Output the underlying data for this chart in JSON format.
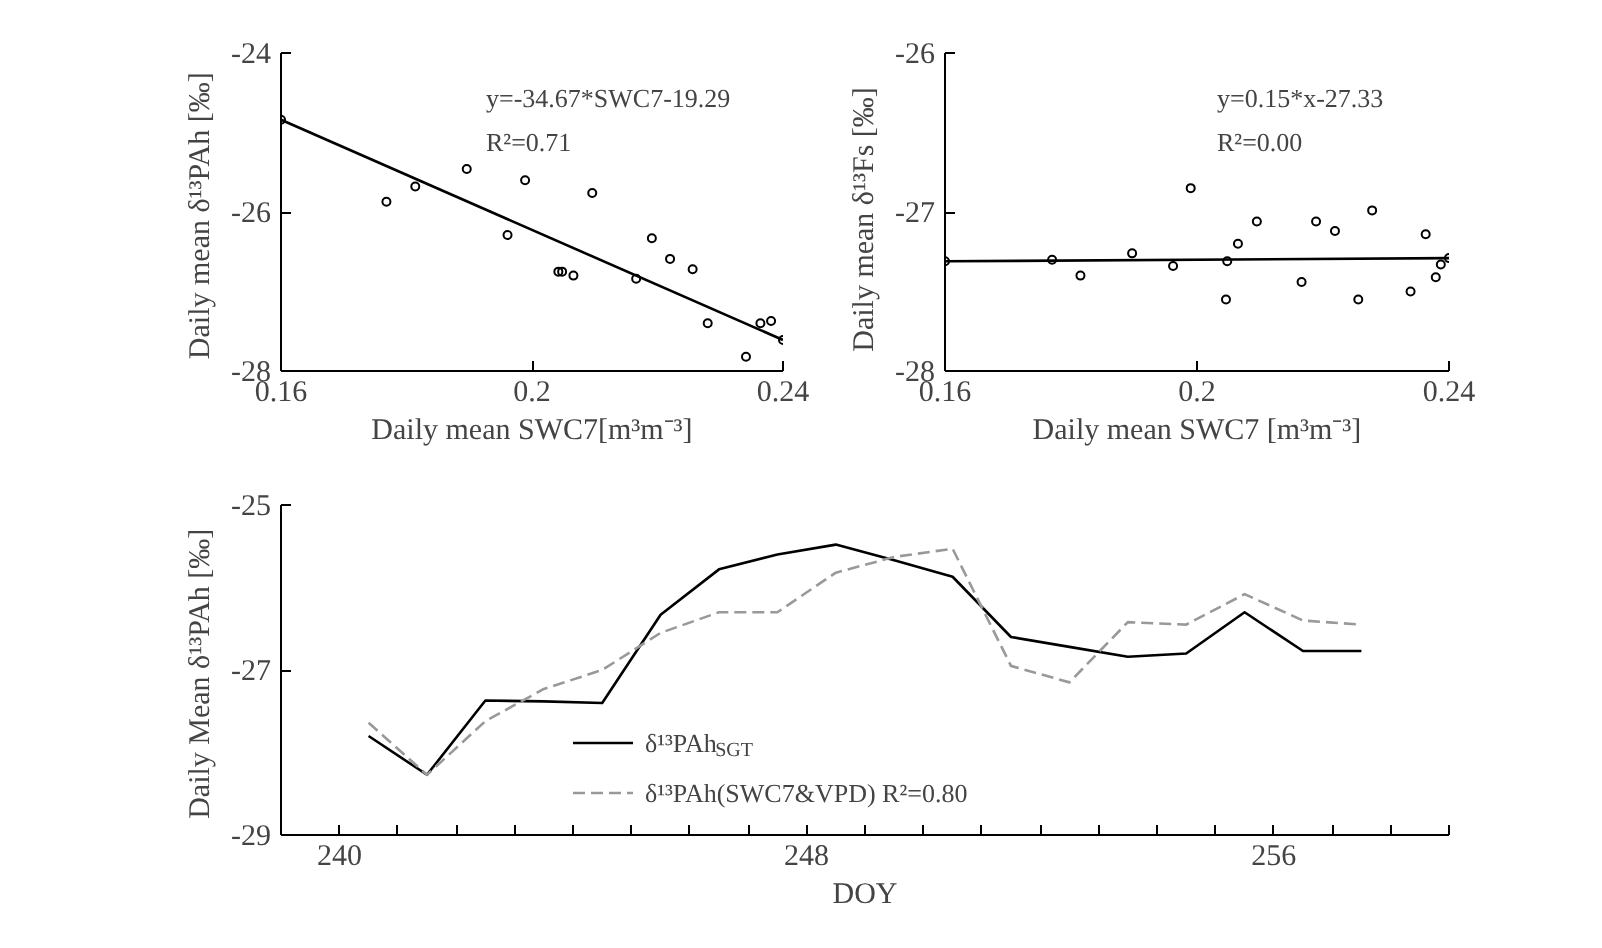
{
  "chart_data": [
    {
      "type": "scatter",
      "xlabel": "Daily mean SWC7[m³m⁻³]",
      "ylabel": "Daily mean  δ¹³PAh [‰]",
      "xlim": [
        0.16,
        0.24
      ],
      "xticks": [
        0.16,
        0.2,
        0.24
      ],
      "ylim": [
        -28,
        -24
      ],
      "yticks": [
        -28,
        -26,
        -24
      ],
      "grid": false,
      "legend": false,
      "marker": "circle",
      "annotations": [
        "y=-34.67*SWC7-19.29",
        "R²=0.71"
      ],
      "series": [
        {
          "type": "scatter",
          "color": "#000000",
          "x": [
            0.1768,
            0.1814,
            0.1896,
            0.1961,
            0.1989,
            0.2042,
            0.2048,
            0.2066,
            0.2096,
            0.2166,
            0.2191,
            0.222,
            0.2256,
            0.228,
            0.2341,
            0.2364,
            0.2381
          ],
          "values": [
            -25.87,
            -25.68,
            -25.46,
            -26.29,
            -25.6,
            -26.75,
            -26.75,
            -26.8,
            -25.76,
            -26.84,
            -26.33,
            -26.59,
            -26.72,
            -27.4,
            -27.82,
            -27.4,
            -27.37
          ]
        },
        {
          "type": "line",
          "color": "#000000",
          "x": [
            0.16,
            0.24
          ],
          "values": [
            -24.84,
            -27.61
          ]
        }
      ]
    },
    {
      "type": "scatter",
      "xlabel": "Daily mean SWC7 [m³m⁻³]",
      "ylabel": "Daily mean   δ¹³Fs [‰]",
      "xlim": [
        0.16,
        0.24
      ],
      "xticks": [
        0.16,
        0.2,
        0.24
      ],
      "ylim": [
        -28,
        -26
      ],
      "yticks": [
        -28,
        -27,
        -26
      ],
      "grid": false,
      "legend": false,
      "marker": "circle",
      "annotations": [
        "y=0.15*x-27.33",
        "R²=0.00"
      ],
      "series": [
        {
          "type": "scatter",
          "color": "#000000",
          "x": [
            0.177,
            0.1815,
            0.1897,
            0.1962,
            0.199,
            0.2046,
            0.2048,
            0.2065,
            0.2095,
            0.2166,
            0.2189,
            0.2219,
            0.2256,
            0.2278,
            0.2339,
            0.2363,
            0.2379,
            0.2387
          ],
          "values": [
            -27.3,
            -27.4,
            -27.26,
            -27.34,
            -26.85,
            -27.55,
            -27.31,
            -27.2,
            -27.06,
            -27.44,
            -27.06,
            -27.12,
            -27.55,
            -26.99,
            -27.5,
            -27.14,
            -27.41,
            -27.33
          ]
        },
        {
          "type": "line",
          "color": "#000000",
          "x": [
            0.16,
            0.24
          ],
          "values": [
            -27.31,
            -27.29
          ]
        }
      ]
    },
    {
      "type": "line",
      "xlabel": "DOY",
      "ylabel": "Daily Mean  δ¹³PAh [‰]",
      "xlim": [
        239,
        259
      ],
      "xticks": [
        240,
        {
          "value": 241,
          "label": null
        },
        {
          "value": 242,
          "label": null
        },
        {
          "value": 243,
          "label": null
        },
        {
          "value": 244,
          "label": null
        },
        {
          "value": 245,
          "label": null
        },
        {
          "value": 246,
          "label": null
        },
        {
          "value": 247,
          "label": null
        },
        248,
        {
          "value": 249,
          "label": null
        },
        {
          "value": 250,
          "label": null
        },
        {
          "value": 251,
          "label": null
        },
        {
          "value": 252,
          "label": null
        },
        {
          "value": 253,
          "label": null
        },
        {
          "value": 254,
          "label": null
        },
        {
          "value": 255,
          "label": null
        },
        256,
        {
          "value": 257,
          "label": null
        },
        {
          "value": 258,
          "label": null
        },
        {
          "value": 259,
          "label": null
        }
      ],
      "ylim": [
        -29,
        -25
      ],
      "yticks": [
        -29,
        -27,
        -25
      ],
      "grid": false,
      "legend": "bottom",
      "marker": "none",
      "x": [
        240.5,
        241.5,
        242.5,
        243.5,
        244.5,
        245.5,
        246.5,
        247.5,
        248.5,
        249.5,
        250.5,
        251.5,
        252.5,
        253.5,
        254.5,
        255.5,
        256.5,
        257.5
      ],
      "series": [
        {
          "name": "δ¹³PAh$_{SGT}$",
          "color": "#000000",
          "line_style": "solid",
          "values": [
            -27.8,
            -28.27,
            -27.37,
            -27.38,
            -27.4,
            -26.33,
            -25.78,
            -25.6,
            -25.48,
            -25.67,
            -25.87,
            -26.6,
            -26.72,
            -26.84,
            -26.8,
            -26.3,
            -26.77,
            -26.77
          ]
        },
        {
          "name": "δ¹³PAh(SWC7&VPD)   R²=0.80",
          "color": "#999999",
          "line_style": "dashed",
          "values": [
            -27.64,
            -28.27,
            -27.62,
            -27.23,
            -27.0,
            -26.55,
            -26.3,
            -26.3,
            -25.82,
            -25.63,
            -25.53,
            -26.95,
            -27.15,
            -26.42,
            -26.45,
            -26.08,
            -26.4,
            -26.45
          ]
        }
      ]
    }
  ]
}
